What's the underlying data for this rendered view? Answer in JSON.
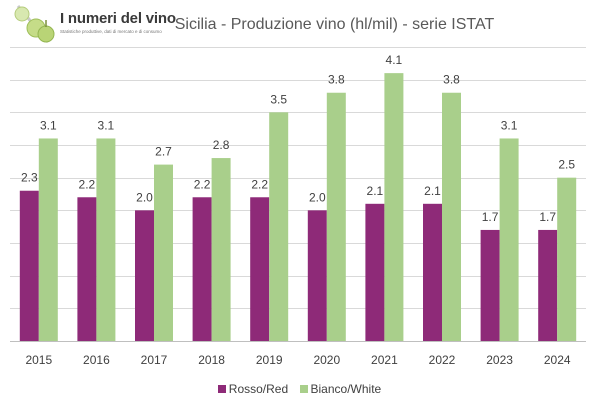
{
  "logo": {
    "title": "I numeri del vino",
    "tagline": "Statistiche produttive, dati di mercato e di consumo"
  },
  "chart_data": {
    "type": "bar",
    "title": "Sicilia - Produzione vino (hl/mil) - serie ISTAT",
    "categories": [
      "2015",
      "2016",
      "2017",
      "2018",
      "2019",
      "2020",
      "2021",
      "2022",
      "2023",
      "2024"
    ],
    "series": [
      {
        "name": "Rosso/Red",
        "color": "#8e2a78",
        "values": [
          2.3,
          2.2,
          2.0,
          2.2,
          2.2,
          2.0,
          2.1,
          2.1,
          1.7,
          1.7
        ],
        "labels": [
          "2.3",
          "2.2",
          "2.0",
          "2.2",
          "2.2",
          "2.0",
          "2.1",
          "2.1",
          "1.7",
          "1.7"
        ]
      },
      {
        "name": "Bianco/White",
        "color": "#a9cf8b",
        "values": [
          3.1,
          3.1,
          2.7,
          2.8,
          3.5,
          3.8,
          4.1,
          3.8,
          3.1,
          2.5
        ],
        "labels": [
          "3.1",
          "3.1",
          "2.7",
          "2.8",
          "3.5",
          "3.8",
          "4.1",
          "3.8",
          "3.1",
          "2.5"
        ]
      }
    ],
    "ylim": [
      0,
      4.5
    ],
    "grid": true,
    "legend": "bottom"
  }
}
